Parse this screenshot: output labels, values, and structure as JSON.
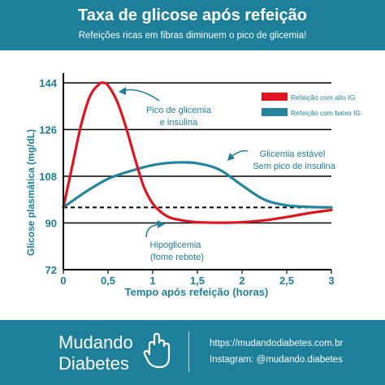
{
  "header": {
    "title": "Taxa de glicose após refeição",
    "subtitle": "Refeições ricas em fibras diminuem o pico de glicemia!"
  },
  "colors": {
    "brand": "#1d7f9a",
    "high_gi": "#e0141e",
    "low_gi": "#2384a0",
    "axis_text": "#1d7f9a",
    "gridline": "#000000"
  },
  "chart_data": {
    "type": "line",
    "title": "Taxa de glicose após refeição",
    "subtitle": "Refeições ricas em fibras diminuem o pico de glicemia!",
    "xlabel": "Tempo após refeição (horas)",
    "ylabel": "Glicose plasmática (mg/dL)",
    "xlim": [
      0,
      3
    ],
    "ylim": [
      72,
      144
    ],
    "x_ticks": [
      "0",
      "0,5",
      "1",
      "1,5",
      "2",
      "2,5",
      "3"
    ],
    "y_ticks": [
      "72",
      "90",
      "108",
      "126",
      "144"
    ],
    "grid": "horizontal",
    "legend_position": "top-right",
    "baseline": {
      "y": 96,
      "style": "dashed"
    },
    "series": [
      {
        "name": "Refeição com alto IG",
        "color": "#e0141e",
        "x": [
          0,
          0.1,
          0.2,
          0.3,
          0.4,
          0.45,
          0.5,
          0.6,
          0.7,
          0.8,
          0.9,
          1.0,
          1.1,
          1.2,
          1.3,
          1.4,
          1.5,
          1.75,
          2.0,
          2.25,
          2.5,
          2.75,
          3.0
        ],
        "y": [
          96,
          112,
          128,
          139,
          143.5,
          144,
          143,
          137,
          127,
          115,
          104,
          97.5,
          94,
          92,
          91.2,
          90.6,
          90.3,
          90.1,
          90.3,
          91,
          92.3,
          93.8,
          95
        ]
      },
      {
        "name": "Refeição com baixo IG",
        "color": "#2384a0",
        "x": [
          0,
          0.25,
          0.5,
          0.75,
          1.0,
          1.25,
          1.5,
          1.75,
          2.0,
          2.25,
          2.5,
          2.75,
          3.0
        ],
        "y": [
          96,
          102,
          107,
          110,
          112.3,
          113.3,
          113,
          110.5,
          104.5,
          99,
          96.8,
          96.2,
          96
        ]
      }
    ],
    "annotations": [
      {
        "line1": "Pico de glicemia",
        "line2": "e insulina"
      },
      {
        "line1": "Glicemia estável",
        "line2": "Sem pico de insulina"
      },
      {
        "line1": "Hipoglicemia",
        "line2": "(fome rebote)"
      }
    ]
  },
  "footer": {
    "brand_line1": "Mudando",
    "brand_line2": "Diabetes",
    "website": "https://mudandodiabetes.com.br",
    "instagram": "Instagram: @mudando.diabetes",
    "icon": "hand-icon"
  }
}
